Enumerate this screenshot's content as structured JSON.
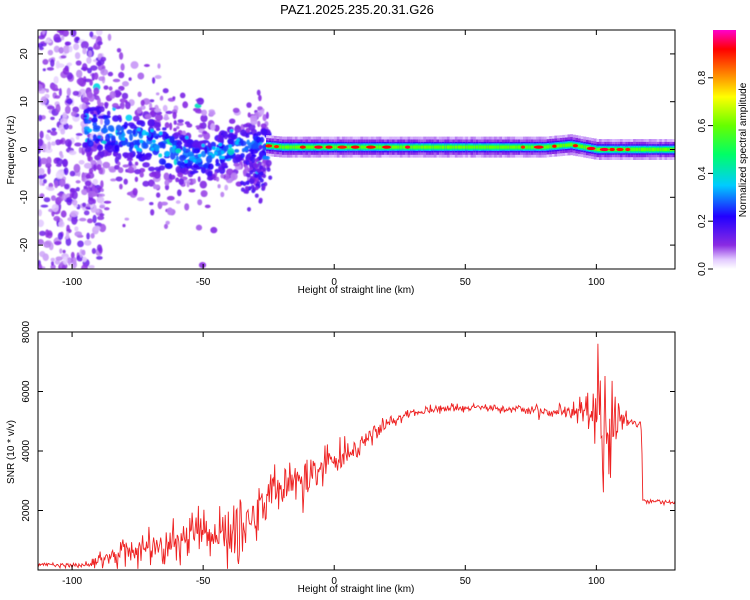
{
  "figure_title": "PAZ1.2025.235.20.31.G26",
  "colors": {
    "snr_line": "#ee2222",
    "axis": "#000000",
    "background": "#ffffff"
  },
  "chart_data": [
    {
      "type": "heatmap",
      "title": "PAZ1.2025.235.20.31.G26",
      "xlabel": "Height of straight line (km)",
      "ylabel": "Frequency (Hz)",
      "xlim": [
        -113,
        130
      ],
      "ylim": [
        -25,
        25
      ],
      "xticks": [
        -100,
        -50,
        0,
        50,
        100
      ],
      "yticks": [
        -20,
        -10,
        0,
        10,
        20
      ],
      "xtick_labels": [
        "-100",
        "-50",
        "0",
        "50",
        "100"
      ],
      "ytick_labels": [
        "-20",
        "-10",
        "0",
        "10",
        "20"
      ],
      "colormap": "rainbow (white-violet-blue-cyan-green-yellow-red-magenta)",
      "colorbar": {
        "label": "Normalized spectral amplitude",
        "range": [
          0.0,
          1.0
        ],
        "ticks": [
          0.0,
          0.2,
          0.4,
          0.6,
          0.8
        ],
        "tick_labels": [
          "0.0",
          "0.2",
          "0.4",
          "0.6",
          "0.8"
        ]
      },
      "ridge": {
        "description": "dominant frequency ridge",
        "x": [
          -90,
          -80,
          -70,
          -60,
          -50,
          -40,
          -30,
          -20,
          0,
          20,
          50,
          80,
          90,
          100,
          110,
          130
        ],
        "frequency": [
          4,
          3,
          1,
          -1,
          -2,
          0,
          1,
          0.5,
          0.5,
          0.5,
          0.5,
          0.5,
          1,
          0,
          0,
          0
        ]
      }
    },
    {
      "type": "line",
      "xlabel": "Height of straight line (km)",
      "ylabel": "SNR (10 * v/v)",
      "xlim": [
        -113,
        130
      ],
      "ylim": [
        0,
        8000
      ],
      "xticks": [
        -100,
        -50,
        0,
        50,
        100
      ],
      "yticks": [
        2000,
        4000,
        6000,
        8000
      ],
      "xtick_labels": [
        "-100",
        "-50",
        "0",
        "50",
        "100"
      ],
      "ytick_labels": [
        "2000",
        "4000",
        "6000",
        "8000"
      ],
      "series": [
        {
          "name": "SNR",
          "x": [
            -113,
            -100,
            -90,
            -85,
            -80,
            -70,
            -60,
            -50,
            -45,
            -40,
            -35,
            -30,
            -25,
            -20,
            -15,
            -10,
            -5,
            0,
            5,
            10,
            15,
            20,
            25,
            30,
            40,
            50,
            60,
            70,
            80,
            85,
            90,
            95,
            100,
            103,
            105,
            110,
            115,
            117,
            118,
            125,
            130
          ],
          "values": [
            200,
            150,
            250,
            400,
            600,
            700,
            900,
            1200,
            1000,
            1200,
            1500,
            1800,
            2200,
            2800,
            3000,
            3200,
            3400,
            3600,
            3900,
            4200,
            4600,
            4900,
            5100,
            5300,
            5400,
            5450,
            5450,
            5400,
            5350,
            5300,
            5250,
            5300,
            5100,
            5000,
            5100,
            5050,
            5000,
            4950,
            2350,
            2300,
            2250
          ],
          "noise": [
            50,
            50,
            150,
            250,
            350,
            450,
            550,
            700,
            600,
            700,
            800,
            800,
            800,
            700,
            500,
            500,
            500,
            400,
            350,
            300,
            250,
            200,
            180,
            150,
            100,
            90,
            90,
            110,
            150,
            180,
            220,
            500,
            1500,
            2500,
            1200,
            300,
            200,
            150,
            60,
            60,
            60
          ]
        }
      ]
    }
  ]
}
